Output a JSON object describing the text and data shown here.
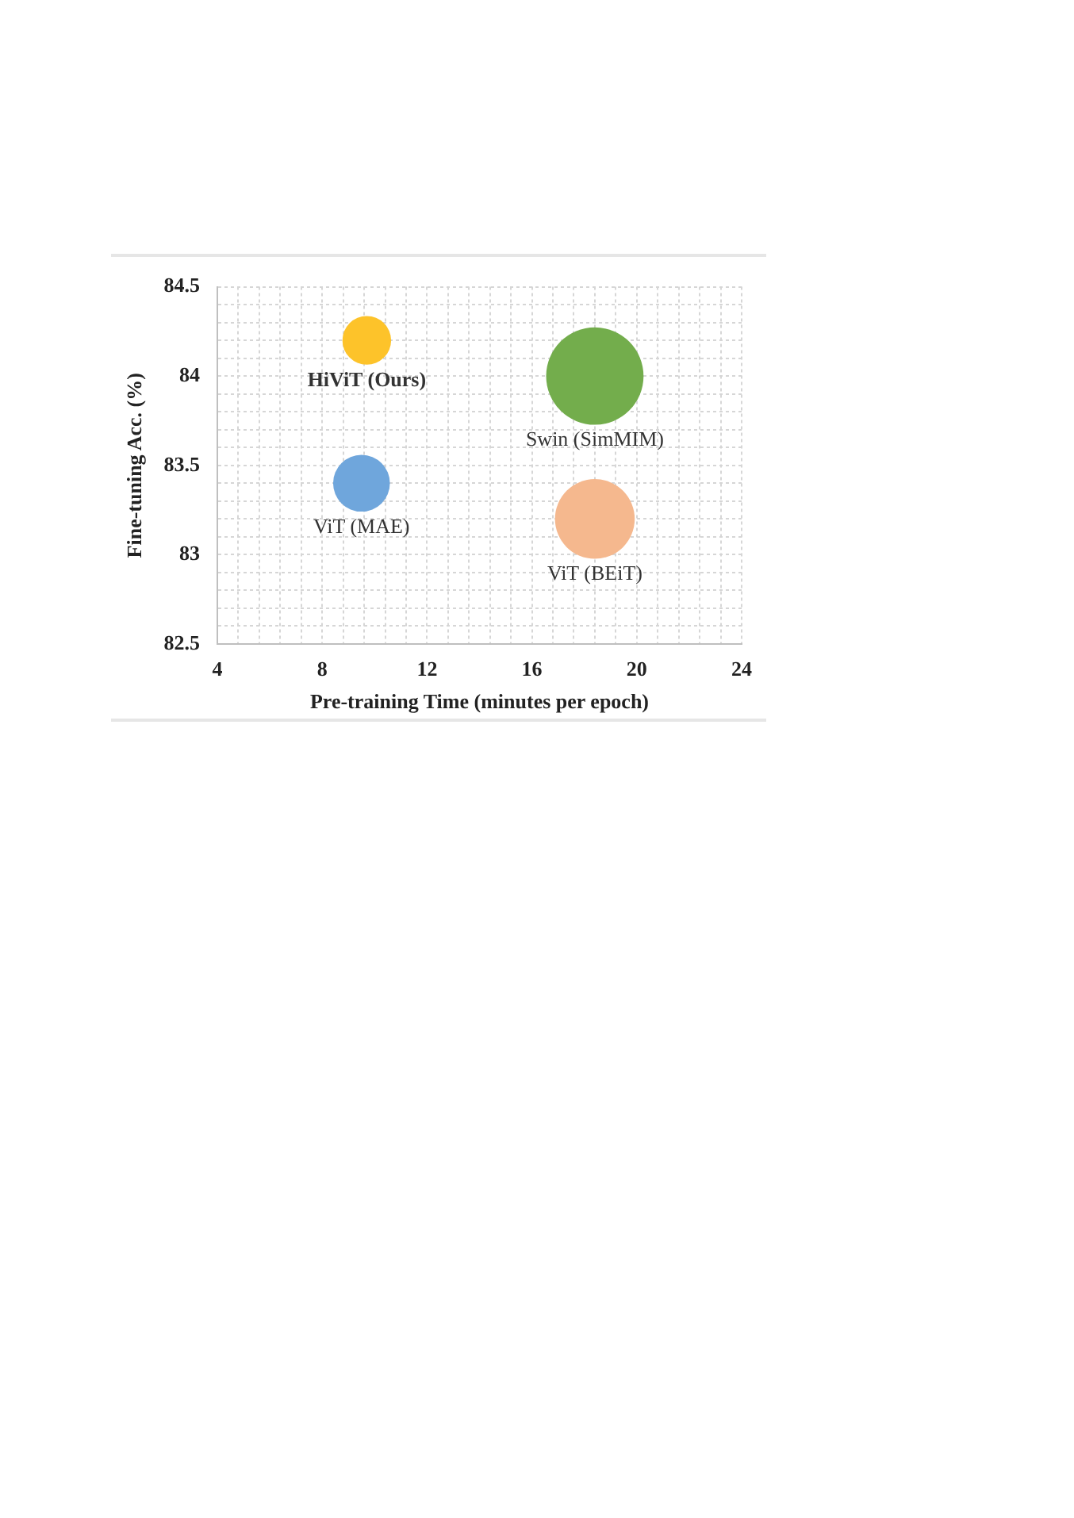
{
  "chart_data": {
    "type": "bubble",
    "xlabel": "Pre-training Time (minutes per epoch)",
    "ylabel": "Fine-tuning Acc. (%)",
    "xlim": [
      4,
      24
    ],
    "xticks": [
      4,
      {
        "value": 4.8,
        "label": null
      },
      {
        "value": 5.6,
        "label": null
      },
      {
        "value": 6.4,
        "label": null
      },
      {
        "value": 7.2,
        "label": null
      },
      8,
      {
        "value": 8.8,
        "label": null
      },
      {
        "value": 9.6,
        "label": null
      },
      {
        "value": 10.4,
        "label": null
      },
      {
        "value": 11.2,
        "label": null
      },
      12,
      {
        "value": 12.8,
        "label": null
      },
      {
        "value": 13.6,
        "label": null
      },
      {
        "value": 14.4,
        "label": null
      },
      {
        "value": 15.2,
        "label": null
      },
      16,
      {
        "value": 16.8,
        "label": null
      },
      {
        "value": 17.6,
        "label": null
      },
      {
        "value": 18.4,
        "label": null
      },
      {
        "value": 19.2,
        "label": null
      },
      20,
      {
        "value": 20.8,
        "label": null
      },
      {
        "value": 21.6,
        "label": null
      },
      {
        "value": 22.4,
        "label": null
      },
      {
        "value": 23.2,
        "label": null
      },
      24
    ],
    "ylim": [
      82.5,
      84.5
    ],
    "yticks": [
      82.5,
      {
        "value": 82.6,
        "label": null
      },
      {
        "value": 82.7,
        "label": null
      },
      {
        "value": 82.8,
        "label": null
      },
      {
        "value": 82.9,
        "label": null
      },
      83,
      {
        "value": 83.1,
        "label": null
      },
      {
        "value": 83.2,
        "label": null
      },
      {
        "value": 83.3,
        "label": null
      },
      {
        "value": 83.4,
        "label": null
      },
      83.5,
      {
        "value": 83.6,
        "label": null
      },
      {
        "value": 83.7,
        "label": null
      },
      {
        "value": 83.8,
        "label": null
      },
      {
        "value": 83.9,
        "label": null
      },
      84,
      {
        "value": 84.1,
        "label": null
      },
      {
        "value": 84.2,
        "label": null
      },
      {
        "value": 84.3,
        "label": null
      },
      {
        "value": 84.4,
        "label": null
      },
      84.5
    ],
    "grid": true,
    "legend": false,
    "series": [
      {
        "name": "HiViT (Ours)",
        "color": "#fdc32a",
        "x": [
          9.7
        ],
        "values": [
          84.2
        ],
        "sizes": [
          0.25
        ]
      },
      {
        "name": "Swin (SimMIM)",
        "color": "#73ad4c",
        "x": [
          18.4
        ],
        "values": [
          84.0
        ],
        "sizes": [
          1
        ]
      },
      {
        "name": "ViT (MAE)",
        "color": "#6fa6dc",
        "x": [
          9.5
        ],
        "values": [
          83.4
        ],
        "sizes": [
          0.34
        ]
      },
      {
        "name": "ViT (BEiT)",
        "color": "#f5b88e",
        "x": [
          18.4
        ],
        "values": [
          83.2
        ],
        "sizes": [
          0.67
        ]
      }
    ]
  }
}
